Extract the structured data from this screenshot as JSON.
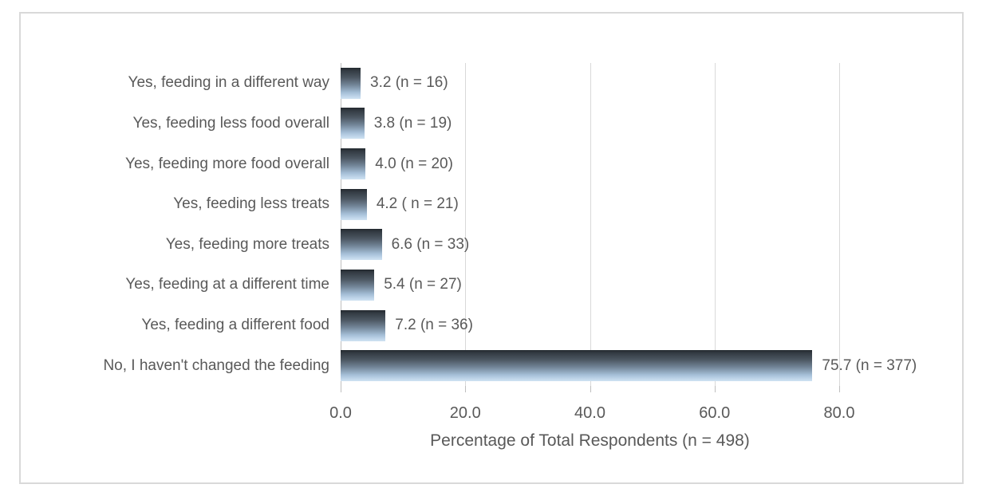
{
  "chart_data": {
    "type": "bar",
    "orientation": "horizontal",
    "categories": [
      "Yes, feeding in a different way",
      "Yes, feeding less food overall",
      "Yes, feeding more food overall",
      "Yes, feeding less treats",
      "Yes, feeding more treats",
      "Yes, feeding at a different time",
      "Yes, feeding a different food",
      "No, I haven't changed the feeding"
    ],
    "values": [
      3.2,
      3.8,
      4.0,
      4.2,
      6.6,
      5.4,
      7.2,
      75.7
    ],
    "counts": [
      16,
      19,
      20,
      21,
      33,
      27,
      36,
      377
    ],
    "value_labels": [
      "3.2 (n = 16)",
      "3.8 (n = 19)",
      "4.0 (n = 20)",
      "4.2 ( n = 21)",
      "6.6 (n = 33)",
      "5.4 (n = 27)",
      "7.2 (n = 36)",
      "75.7 (n = 377)"
    ],
    "title": "",
    "xlabel": "Percentage of Total Respondents (n = 498)",
    "ylabel": "",
    "xlim": [
      0,
      80
    ],
    "x_ticks": [
      "0.0",
      "20.0",
      "40.0",
      "60.0",
      "80.0"
    ],
    "x_tick_values": [
      0,
      20,
      40,
      60,
      80
    ],
    "grid": "vertical-only",
    "legend": "none",
    "total_n": 498
  },
  "style": {
    "text_color": "#595959",
    "gridline_color": "#d9d9d9",
    "axis_line_color": "#bfbfbf",
    "chart_border_color": "#d9d9d9",
    "bar_gradient_top": "#23292f",
    "bar_gradient_middle": "#74879a",
    "bar_gradient_bottom": "#cfe2f2",
    "background": "#ffffff"
  }
}
